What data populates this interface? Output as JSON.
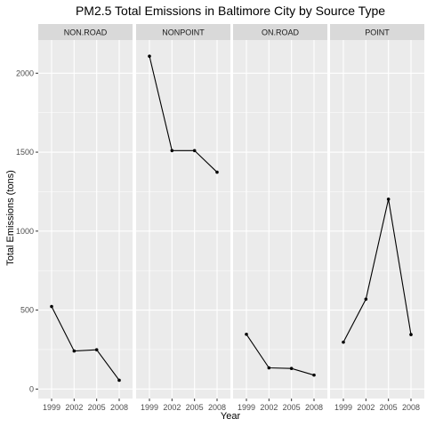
{
  "chart_data": {
    "type": "line",
    "title": "PM2.5 Total Emissions in Baltimore City by Source Type",
    "xlabel": "Year",
    "ylabel": "Total Emissions (tons)",
    "x": [
      "1999",
      "2002",
      "2005",
      "2008"
    ],
    "ylim": [
      -60,
      2210
    ],
    "yticks": [
      0,
      500,
      1000,
      1500,
      2000
    ],
    "grid": true,
    "facets": [
      {
        "name": "NON.ROAD",
        "values": [
          522.9,
          241.0,
          248.9,
          55.8
        ]
      },
      {
        "name": "NONPOINT",
        "values": [
          2107.6,
          1510.0,
          1510.0,
          1373.2
        ]
      },
      {
        "name": "ON.ROAD",
        "values": [
          346.8,
          134.3,
          130.4,
          88.3
        ]
      },
      {
        "name": "POINT",
        "values": [
          296.8,
          569.3,
          1202.5,
          344.98
        ]
      }
    ],
    "colors": {
      "panel_background": "#ebebeb",
      "strip_background": "#d9d9d9",
      "grid": "#ffffff",
      "line": "#000000",
      "point": "#000000"
    }
  }
}
